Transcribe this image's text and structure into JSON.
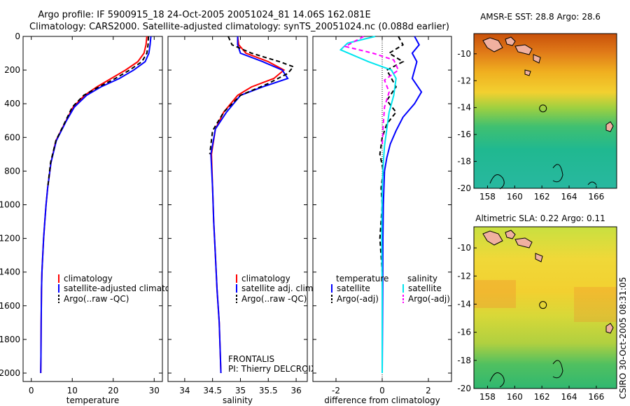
{
  "header": {
    "line1": "Argo profile: IF 5900915_18 24-Oct-2005 20051024_81 14.06S 162.081E",
    "line2": "Climatology: CARS2000. Satellite-adjusted climatology: synTS_20051024.nc (0.088d earlier)"
  },
  "side_text": "CSIRO 30-Oct-2005 08:31:05",
  "chart_data": [
    {
      "type": "line",
      "xlabel": "temperature",
      "ylim": [
        2050,
        0
      ],
      "xlim": [
        -2,
        32
      ],
      "xticks": [
        0,
        10,
        20,
        30
      ],
      "yticks": [
        0,
        200,
        400,
        600,
        800,
        1000,
        1200,
        1400,
        1600,
        1800,
        2000
      ],
      "legend": {
        "position": "lower-center",
        "entries": [
          "climatology",
          "satellite-adjusted climatology",
          "Argo(..raw -QC)"
        ]
      },
      "series": [
        {
          "name": "climatology",
          "color": "#ff0000",
          "dash": "",
          "x": [
            28.2,
            28.0,
            27.5,
            26.0,
            23.0,
            19.5,
            16.0,
            13.0,
            10.2,
            8.5,
            6.0,
            4.8,
            4.0,
            3.6,
            3.3,
            3.0,
            2.8,
            2.6,
            2.5,
            2.4,
            2.35,
            2.3
          ],
          "y": [
            0,
            50,
            100,
            150,
            200,
            250,
            300,
            350,
            420,
            500,
            620,
            750,
            900,
            1000,
            1100,
            1200,
            1300,
            1400,
            1500,
            1700,
            1900,
            2000
          ]
        },
        {
          "name": "satellite-adjusted climatology",
          "color": "#0000ff",
          "dash": "",
          "x": [
            29.2,
            29.0,
            28.7,
            27.8,
            25.0,
            21.5,
            17.0,
            13.5,
            10.5,
            8.6,
            6.1,
            4.8,
            4.0,
            3.6,
            3.3,
            3.0,
            2.8,
            2.6,
            2.5,
            2.4,
            2.35,
            2.3
          ],
          "y": [
            0,
            50,
            100,
            150,
            200,
            250,
            300,
            350,
            420,
            500,
            620,
            750,
            900,
            1000,
            1100,
            1200,
            1300,
            1400,
            1500,
            1700,
            1900,
            2000
          ]
        },
        {
          "name": "Argo(..raw -QC)",
          "color": "#000000",
          "dash": "6,4",
          "x": [
            28.6,
            28.5,
            28.2,
            27.0,
            24.0,
            20.5,
            16.5,
            12.8,
            10.0,
            8.4,
            6.0,
            4.7,
            4.0
          ],
          "y": [
            0,
            50,
            100,
            150,
            200,
            250,
            300,
            350,
            420,
            500,
            620,
            750,
            900
          ]
        }
      ]
    },
    {
      "type": "line",
      "xlabel": "salinity",
      "ylim": [
        2050,
        0
      ],
      "xlim": [
        33.7,
        36.2
      ],
      "xticks": [
        34,
        34.5,
        35,
        35.5,
        36
      ],
      "legend": {
        "position": "lower-center",
        "entries": [
          "climatology",
          "satellite adj. clim.",
          "Argo(..raw -QC)"
        ]
      },
      "annotation": {
        "line1": "FRONTALIS",
        "line2": "PI: Thierry DELCROIX"
      },
      "series": [
        {
          "name": "climatology",
          "color": "#ff0000",
          "dash": "",
          "x": [
            34.95,
            34.97,
            35.1,
            35.5,
            35.78,
            35.6,
            35.2,
            34.95,
            34.7,
            34.55,
            34.48,
            34.5,
            34.52,
            34.55,
            34.58,
            34.6,
            34.62,
            34.63,
            34.64,
            34.65
          ],
          "y": [
            0,
            50,
            100,
            150,
            200,
            250,
            300,
            350,
            450,
            550,
            700,
            900,
            1100,
            1300,
            1500,
            1600,
            1700,
            1800,
            1900,
            2000
          ]
        },
        {
          "name": "satellite adj. clim.",
          "color": "#0000ff",
          "dash": "",
          "x": [
            34.95,
            34.95,
            35.0,
            35.4,
            35.75,
            35.85,
            35.4,
            35.0,
            34.75,
            34.55,
            34.47,
            34.5,
            34.52,
            34.55,
            34.58,
            34.6,
            34.62,
            34.63,
            34.64,
            34.65
          ],
          "y": [
            0,
            50,
            100,
            150,
            200,
            250,
            300,
            350,
            450,
            550,
            700,
            900,
            1100,
            1300,
            1500,
            1600,
            1700,
            1800,
            1900,
            2000
          ]
        },
        {
          "name": "Argo(..raw -QC)",
          "color": "#000000",
          "dash": "6,4",
          "x": [
            34.78,
            34.85,
            35.2,
            35.7,
            35.95,
            35.85,
            35.5,
            35.0,
            34.7,
            34.5,
            34.45
          ],
          "y": [
            0,
            50,
            100,
            150,
            180,
            220,
            280,
            350,
            450,
            560,
            700
          ]
        }
      ]
    },
    {
      "type": "line",
      "xlabel": "difference from climatology",
      "ylim": [
        2050,
        0
      ],
      "xlim": [
        -3,
        3
      ],
      "xticks": [
        -2,
        0,
        2
      ],
      "legend": {
        "position": "lower-center",
        "temperature": {
          "title": "temperature",
          "entries": [
            "satellite",
            "Argo(-adj)"
          ]
        },
        "salinity": {
          "title": "salinity",
          "entries": [
            "satellite",
            "Argo(-adj)"
          ]
        }
      },
      "series": [
        {
          "name": "satellite",
          "group": "temperature",
          "color": "#0000ff",
          "dash": "",
          "x": [
            1.4,
            1.6,
            1.3,
            1.5,
            1.4,
            1.3,
            1.7,
            1.4,
            0.9,
            0.6,
            0.35,
            0.2,
            0.1,
            0.05,
            0.03,
            0.02,
            0.01,
            0.0
          ],
          "y": [
            0,
            50,
            100,
            150,
            200,
            250,
            330,
            400,
            480,
            560,
            640,
            720,
            800,
            1000,
            1200,
            1500,
            1800,
            2000
          ]
        },
        {
          "name": "Argo(-adj)",
          "group": "temperature",
          "color": "#000000",
          "dash": "6,4",
          "x": [
            0.7,
            0.9,
            0.3,
            0.9,
            0.2,
            0.6,
            0.2,
            0.6,
            0.2,
            0.0,
            -0.1,
            0.05,
            -0.05,
            0.0,
            -0.1,
            0.0
          ],
          "y": [
            0,
            50,
            100,
            150,
            200,
            300,
            380,
            450,
            520,
            600,
            700,
            800,
            900,
            1000,
            1200,
            1400
          ]
        },
        {
          "name": "satellite",
          "group": "salinity",
          "color": "#00e5ee",
          "dash": "",
          "x": [
            -0.3,
            -1.5,
            -1.8,
            -0.6,
            0.4,
            0.6,
            0.5,
            0.3,
            0.2,
            0.1,
            0.05,
            0.0,
            -0.02,
            0.0,
            0.0,
            0.0
          ],
          "y": [
            0,
            40,
            80,
            150,
            200,
            250,
            350,
            450,
            550,
            650,
            750,
            900,
            1200,
            1500,
            1800,
            2000
          ]
        },
        {
          "name": "Argo(-adj)",
          "group": "salinity",
          "color": "#ff00ff",
          "dash": "6,4",
          "x": [
            -0.8,
            -1.6,
            -0.4,
            0.5,
            0.7,
            0.1,
            0.3,
            0.1,
            0.05,
            0.0
          ],
          "y": [
            0,
            60,
            100,
            140,
            200,
            260,
            330,
            420,
            520,
            650
          ]
        }
      ]
    },
    {
      "type": "heatmap",
      "title": "AMSR-E SST: 28.8 Argo: 28.6",
      "xticks": [
        "158",
        "160",
        "162",
        "164",
        "166"
      ],
      "yticks": [
        "-10",
        "-12",
        "-14",
        "-16",
        "-18",
        "-20"
      ],
      "xlim": [
        157,
        167.5
      ],
      "ylim": [
        -20,
        -8.5
      ],
      "marker": {
        "lon": 162.08,
        "lat": -14.06
      }
    },
    {
      "type": "heatmap",
      "title": "Altimetric SLA: 0.22 Argo: 0.11",
      "xticks": [
        "158",
        "160",
        "162",
        "164",
        "166"
      ],
      "yticks": [
        "-10",
        "-12",
        "-14",
        "-16",
        "-18",
        "-20"
      ],
      "xlim": [
        157,
        167.5
      ],
      "ylim": [
        -20,
        -8.5
      ],
      "marker": {
        "lon": 162.08,
        "lat": -14.06
      }
    }
  ]
}
